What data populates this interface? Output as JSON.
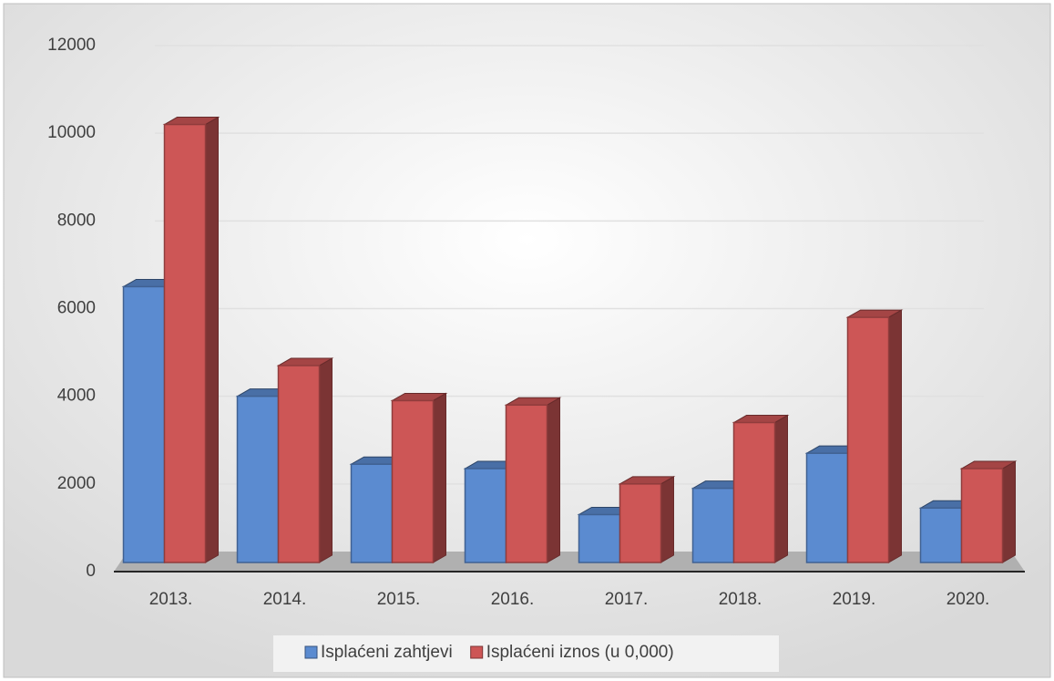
{
  "chart_data": {
    "type": "bar",
    "categories": [
      "2013.",
      "2014.",
      "2015.",
      "2016.",
      "2017.",
      "2018.",
      "2019.",
      "2020."
    ],
    "series": [
      {
        "name": "Isplaćeni zahtjevi",
        "color": "#5b8bd0",
        "values": [
          6500,
          4000,
          2450,
          2350,
          1300,
          1900,
          2700,
          1450
        ]
      },
      {
        "name": "Isplaćeni iznos (u 0,000)",
        "color": "#cd5656",
        "values": [
          10200,
          4700,
          3900,
          3800,
          2000,
          3400,
          5800,
          2350
        ]
      }
    ],
    "ylim": [
      0,
      12000
    ],
    "yticks": [
      0,
      2000,
      4000,
      6000,
      8000,
      10000,
      12000
    ],
    "grid": true,
    "legend": "bottom"
  }
}
